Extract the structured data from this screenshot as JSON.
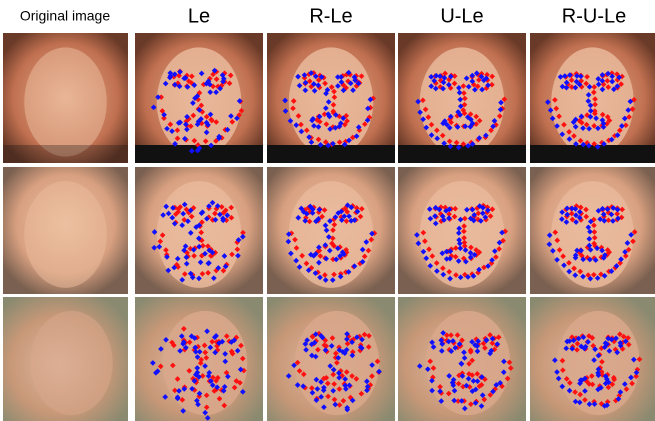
{
  "header": {
    "columns": [
      "Original image",
      "Le",
      "R-Le",
      "U-Le",
      "R-U-Le"
    ]
  }
}
